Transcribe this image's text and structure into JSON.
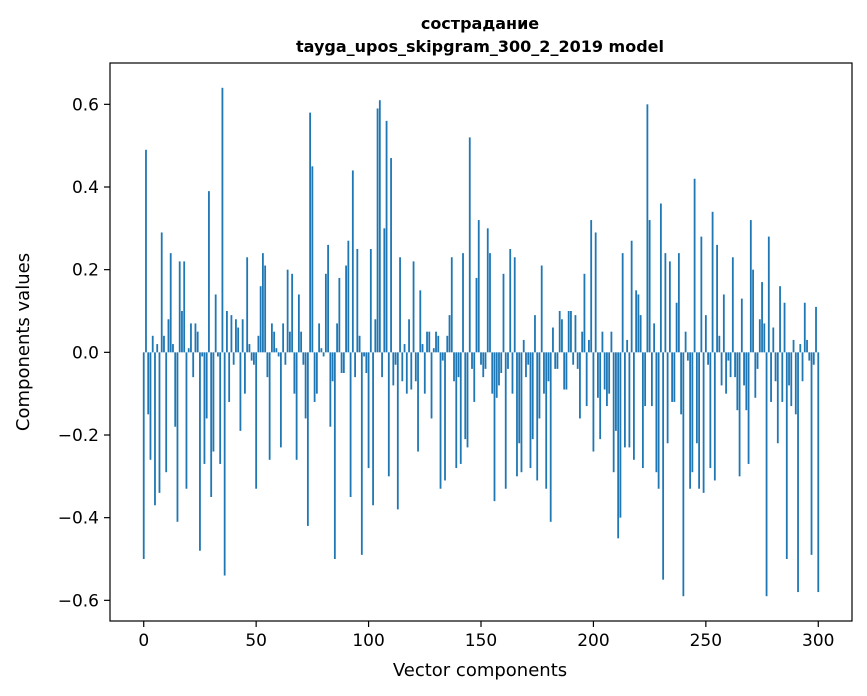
{
  "chart_data": {
    "type": "bar",
    "title": "сострадание",
    "subtitle": "tayga_upos_skipgram_300_2_2019 model",
    "xlabel": "Vector components",
    "ylabel": "Components values",
    "xlim": [
      -15,
      315
    ],
    "ylim": [
      -0.65,
      0.7
    ],
    "xticks": [
      0,
      50,
      100,
      150,
      200,
      250,
      300
    ],
    "yticks": [
      -0.6,
      -0.4,
      -0.2,
      0.0,
      0.2,
      0.4,
      0.6
    ],
    "xtick_labels": [
      "0",
      "50",
      "100",
      "150",
      "200",
      "250",
      "300"
    ],
    "ytick_labels": [
      "−0.6",
      "−0.4",
      "−0.2",
      "0.0",
      "0.2",
      "0.4",
      "0.6"
    ],
    "grid": false,
    "legend": "none",
    "bar_color": "#1f77b4",
    "values": [
      -0.5,
      0.49,
      -0.15,
      -0.26,
      0.04,
      -0.37,
      0.02,
      -0.34,
      0.29,
      0.04,
      -0.29,
      0.08,
      0.24,
      0.02,
      -0.18,
      -0.41,
      0.22,
      0.1,
      0.22,
      -0.33,
      0.01,
      0.07,
      -0.06,
      0.07,
      0.05,
      -0.48,
      -0.01,
      -0.27,
      -0.16,
      0.39,
      -0.35,
      -0.24,
      0.14,
      -0.01,
      -0.27,
      0.64,
      -0.54,
      0.1,
      -0.12,
      0.09,
      -0.03,
      0.08,
      0.06,
      -0.19,
      0.08,
      -0.1,
      0.23,
      0.02,
      -0.02,
      -0.03,
      -0.33,
      0.04,
      0.16,
      0.24,
      0.21,
      -0.06,
      -0.26,
      0.07,
      0.05,
      0.01,
      -0.01,
      -0.23,
      0.07,
      -0.03,
      0.2,
      0.05,
      0.19,
      -0.1,
      -0.26,
      0.14,
      0.05,
      -0.03,
      -0.16,
      -0.42,
      0.58,
      0.45,
      -0.12,
      -0.1,
      0.07,
      0.01,
      -0.01,
      0.19,
      0.26,
      -0.18,
      -0.07,
      -0.5,
      0.07,
      0.18,
      -0.05,
      -0.05,
      0.21,
      0.27,
      -0.35,
      0.44,
      -0.06,
      0.25,
      0.04,
      -0.49,
      -0.01,
      -0.05,
      -0.28,
      0.25,
      -0.37,
      0.08,
      0.59,
      0.61,
      -0.06,
      0.3,
      0.56,
      -0.3,
      0.47,
      -0.08,
      -0.03,
      -0.38,
      0.23,
      -0.07,
      0.02,
      -0.1,
      0.08,
      -0.09,
      0.22,
      -0.07,
      -0.24,
      0.15,
      0.02,
      -0.1,
      0.05,
      0.05,
      -0.16,
      0.01,
      0.05,
      0.04,
      -0.33,
      -0.02,
      -0.31,
      0.04,
      0.09,
      0.23,
      -0.07,
      -0.28,
      -0.06,
      -0.27,
      0.24,
      -0.21,
      -0.23,
      0.52,
      -0.04,
      -0.12,
      0.18,
      0.32,
      -0.03,
      -0.06,
      -0.04,
      0.3,
      0.24,
      -0.1,
      -0.36,
      -0.11,
      -0.08,
      -0.05,
      0.19,
      -0.33,
      -0.04,
      0.25,
      -0.1,
      0.23,
      -0.3,
      -0.22,
      -0.29,
      0.03,
      -0.06,
      -0.03,
      -0.28,
      -0.21,
      0.09,
      -0.31,
      -0.16,
      0.21,
      -0.1,
      -0.33,
      -0.07,
      -0.41,
      0.06,
      -0.04,
      -0.04,
      0.1,
      0.08,
      -0.09,
      -0.09,
      0.1,
      0.1,
      -0.03,
      0.09,
      -0.04,
      -0.16,
      0.05,
      0.19,
      -0.13,
      0.03,
      0.32,
      -0.24,
      0.29,
      -0.11,
      -0.21,
      0.05,
      -0.09,
      -0.13,
      -0.1,
      0.05,
      -0.29,
      -0.19,
      -0.45,
      -0.4,
      0.24,
      -0.23,
      0.03,
      -0.23,
      0.27,
      -0.26,
      0.15,
      0.14,
      0.09,
      -0.28,
      -0.13,
      0.6,
      0.32,
      -0.13,
      0.07,
      -0.29,
      -0.33,
      0.36,
      -0.55,
      0.24,
      -0.22,
      0.22,
      -0.12,
      -0.12,
      0.12,
      0.24,
      -0.15,
      -0.59,
      0.05,
      -0.02,
      -0.33,
      -0.29,
      0.42,
      -0.22,
      -0.33,
      0.28,
      -0.34,
      0.09,
      -0.03,
      -0.28,
      0.34,
      -0.31,
      0.26,
      0.04,
      -0.08,
      0.14,
      -0.1,
      -0.02,
      -0.06,
      0.23,
      -0.06,
      -0.14,
      -0.3,
      0.13,
      -0.08,
      -0.14,
      -0.27,
      0.32,
      0.2,
      -0.11,
      -0.04,
      0.08,
      0.17,
      0.07,
      -0.59,
      0.28,
      -0.12,
      0.06,
      -0.07,
      -0.22,
      0.16,
      -0.12,
      0.12,
      -0.5,
      -0.08,
      -0.13,
      0.03,
      -0.15,
      -0.58,
      0.02,
      -0.07,
      0.12,
      0.03,
      -0.02,
      -0.49,
      -0.03,
      0.11,
      -0.58
    ]
  }
}
